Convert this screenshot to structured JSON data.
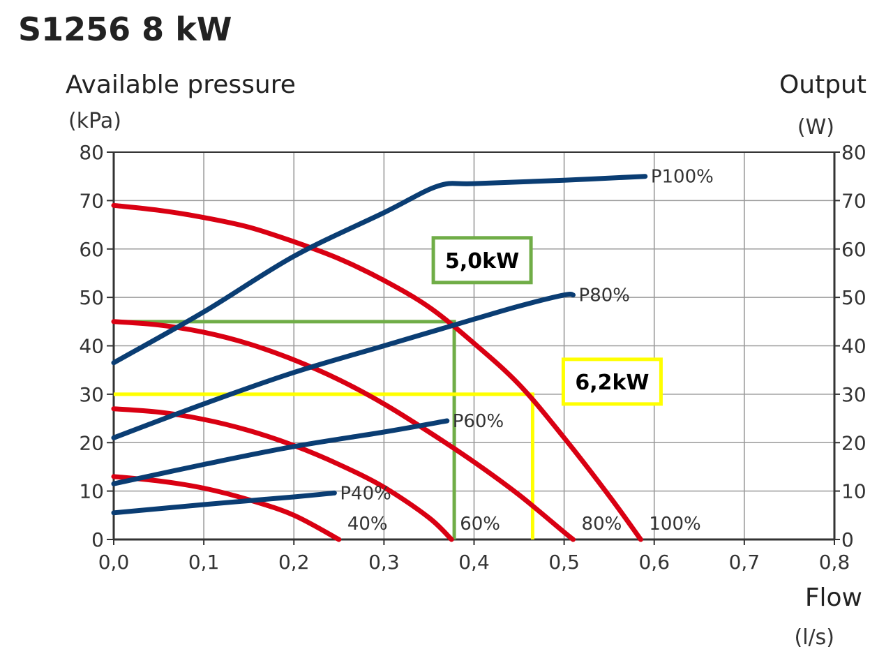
{
  "chart_data": {
    "type": "line",
    "title": "S1256 8 kW",
    "ylabel": "Available pressure",
    "ylabel_unit": "(kPa)",
    "y2label": "Output",
    "y2label_unit": "(W)",
    "xlabel": "Flow",
    "xlabel_unit": "(l/s)",
    "xlim": [
      0,
      0.8
    ],
    "ylim": [
      0,
      80
    ],
    "y2lim": [
      0,
      80
    ],
    "x_ticks": [
      "0,0",
      "0,1",
      "0,2",
      "0,3",
      "0,4",
      "0,5",
      "0,6",
      "0,7",
      "0,8"
    ],
    "y_ticks": [
      "0",
      "10",
      "20",
      "30",
      "40",
      "50",
      "60",
      "70",
      "80"
    ],
    "y2_ticks": [
      "0",
      "10",
      "20",
      "30",
      "40",
      "50",
      "60",
      "70",
      "80"
    ],
    "grid": true,
    "pressure_series": [
      {
        "name": "100%",
        "color": "#d90012",
        "x": [
          0,
          0.05,
          0.1,
          0.15,
          0.2,
          0.25,
          0.3,
          0.35,
          0.4,
          0.45,
          0.5,
          0.55,
          0.585
        ],
        "y": [
          69,
          68,
          66.5,
          64.5,
          61.5,
          58,
          53.5,
          48,
          40.5,
          32,
          21,
          9,
          0
        ]
      },
      {
        "name": "80%",
        "color": "#d90012",
        "x": [
          0,
          0.05,
          0.1,
          0.15,
          0.2,
          0.25,
          0.3,
          0.35,
          0.4,
          0.45,
          0.5,
          0.51
        ],
        "y": [
          45,
          44.3,
          42.8,
          40.4,
          37.1,
          33,
          28,
          22.2,
          16,
          9.2,
          1.5,
          0
        ]
      },
      {
        "name": "60%",
        "color": "#d90012",
        "x": [
          0,
          0.05,
          0.1,
          0.15,
          0.2,
          0.25,
          0.3,
          0.35,
          0.375
        ],
        "y": [
          27,
          26.3,
          24.8,
          22.5,
          19.4,
          15.5,
          10.8,
          4.5,
          0
        ]
      },
      {
        "name": "40%",
        "color": "#d90012",
        "x": [
          0,
          0.05,
          0.1,
          0.15,
          0.2,
          0.25
        ],
        "y": [
          13,
          12.1,
          10.6,
          8.2,
          5,
          0
        ]
      }
    ],
    "power_series": [
      {
        "name": "P100%",
        "color": "#0a3d73",
        "x": [
          0,
          0.1,
          0.2,
          0.3,
          0.36,
          0.4,
          0.5,
          0.59
        ],
        "y": [
          36.5,
          47,
          58.5,
          67.5,
          73,
          73.5,
          74.2,
          75
        ]
      },
      {
        "name": "P80%",
        "color": "#0a3d73",
        "x": [
          0,
          0.1,
          0.2,
          0.3,
          0.4,
          0.45,
          0.5,
          0.51
        ],
        "y": [
          21,
          28,
          34.5,
          40,
          45.5,
          48.2,
          50.5,
          50.5
        ]
      },
      {
        "name": "P60%",
        "color": "#0a3d73",
        "x": [
          0,
          0.1,
          0.2,
          0.3,
          0.37
        ],
        "y": [
          11.5,
          15.5,
          19.2,
          22.2,
          24.5
        ]
      },
      {
        "name": "P40%",
        "color": "#0a3d73",
        "x": [
          0,
          0.1,
          0.2,
          0.245
        ],
        "y": [
          5.5,
          7.2,
          8.8,
          9.6
        ]
      }
    ],
    "annotations": [
      {
        "label": "5,0kW",
        "color": "#70ad47",
        "x": 0.378,
        "y": 45
      },
      {
        "label": "6,2kW",
        "color": "#ffff00",
        "x": 0.465,
        "y": 30
      }
    ]
  }
}
